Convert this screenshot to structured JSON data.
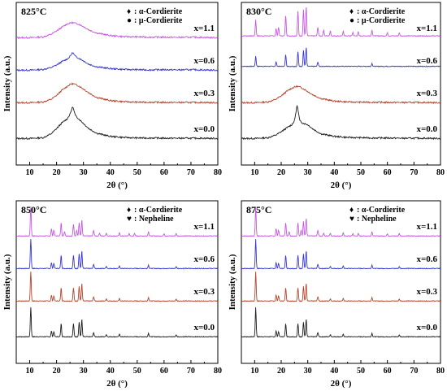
{
  "chart_data": [
    {
      "type": "line",
      "title": "825°C",
      "xlabel": "2θ (°)",
      "ylabel": "Intensity (a.u.)",
      "xlim": [
        5,
        80
      ],
      "xticks": [
        10,
        20,
        30,
        40,
        50,
        60,
        70,
        80
      ],
      "legend": [
        {
          "symbol": "♦",
          "label": ": α-Cordierite"
        },
        {
          "symbol": "●",
          "label": ": μ-Cordierite"
        }
      ],
      "legend_position": "top-right",
      "series": [
        {
          "name": "x=1.1",
          "color": "#c24fe0",
          "kind": "amorphous",
          "x": [
            5,
            10,
            15,
            18,
            20,
            22,
            24,
            25,
            26,
            27,
            28,
            30,
            32,
            35,
            40,
            45,
            50,
            55,
            60,
            65,
            70,
            75,
            80
          ],
          "y": [
            0.02,
            0.02,
            0.05,
            0.15,
            0.28,
            0.42,
            0.55,
            0.58,
            0.6,
            0.57,
            0.55,
            0.45,
            0.32,
            0.2,
            0.1,
            0.06,
            0.05,
            0.04,
            0.04,
            0.03,
            0.04,
            0.03,
            0.02
          ]
        },
        {
          "name": "x=0.6",
          "color": "#2b2bd1",
          "kind": "amorphous",
          "x": [
            5,
            10,
            15,
            18,
            20,
            22,
            24,
            25,
            26,
            27,
            28,
            30,
            32,
            35,
            40,
            45,
            50,
            55,
            60,
            65,
            70,
            75,
            80
          ],
          "y": [
            0.02,
            0.02,
            0.05,
            0.12,
            0.22,
            0.35,
            0.45,
            0.55,
            0.7,
            0.55,
            0.5,
            0.38,
            0.25,
            0.15,
            0.08,
            0.05,
            0.04,
            0.03,
            0.04,
            0.03,
            0.04,
            0.03,
            0.02
          ]
        },
        {
          "name": "x=0.3",
          "color": "#b03a22",
          "kind": "amorphous",
          "x": [
            5,
            10,
            15,
            18,
            20,
            22,
            24,
            25,
            26,
            27,
            28,
            30,
            32,
            35,
            40,
            45,
            50,
            55,
            60,
            65,
            70,
            75,
            80
          ],
          "y": [
            0.02,
            0.02,
            0.05,
            0.15,
            0.3,
            0.5,
            0.65,
            0.72,
            0.75,
            0.72,
            0.68,
            0.55,
            0.4,
            0.22,
            0.1,
            0.06,
            0.04,
            0.04,
            0.03,
            0.03,
            0.03,
            0.03,
            0.02
          ]
        },
        {
          "name": "x=0.0",
          "color": "#111111",
          "kind": "amorphous",
          "x": [
            5,
            10,
            15,
            18,
            20,
            22,
            24,
            25,
            26,
            27,
            28,
            30,
            32,
            35,
            40,
            45,
            50,
            55,
            60,
            65,
            70,
            75,
            80
          ],
          "y": [
            0.02,
            0.02,
            0.05,
            0.2,
            0.4,
            0.62,
            0.78,
            0.95,
            1.25,
            0.9,
            0.8,
            0.6,
            0.4,
            0.22,
            0.1,
            0.06,
            0.04,
            0.04,
            0.03,
            0.03,
            0.03,
            0.03,
            0.02
          ]
        }
      ]
    },
    {
      "type": "line",
      "title": "830°C",
      "xlabel": "2θ (°)",
      "ylabel": "Intensity (a.u.)",
      "xlim": [
        5,
        80
      ],
      "xticks": [
        10,
        20,
        30,
        40,
        50,
        60,
        70,
        80
      ],
      "legend": [
        {
          "symbol": "♦",
          "label": ": α-Cordierite"
        },
        {
          "symbol": "●",
          "label": ": μ-Cordierite"
        }
      ],
      "legend_position": "top-right",
      "series": [
        {
          "name": "x=1.1",
          "color": "#c24fe0",
          "kind": "crystalline",
          "peaks": [
            [
              10.4,
              0.55
            ],
            [
              18.1,
              0.25
            ],
            [
              19.0,
              0.3
            ],
            [
              21.7,
              0.7
            ],
            [
              26.3,
              0.85
            ],
            [
              28.4,
              0.9
            ],
            [
              29.4,
              1.0
            ],
            [
              33.8,
              0.3
            ],
            [
              36.0,
              0.2
            ],
            [
              38.5,
              0.18
            ],
            [
              43.4,
              0.15
            ],
            [
              47.0,
              0.12
            ],
            [
              49.0,
              0.13
            ],
            [
              54.2,
              0.2
            ],
            [
              60.0,
              0.12
            ],
            [
              64.5,
              0.1
            ]
          ],
          "baseline": 0.08
        },
        {
          "name": "x=0.6",
          "color": "#2b2bd1",
          "kind": "crystalline",
          "peaks": [
            [
              10.4,
              0.35
            ],
            [
              18.1,
              0.15
            ],
            [
              21.7,
              0.4
            ],
            [
              26.3,
              0.5
            ],
            [
              28.4,
              0.55
            ],
            [
              29.4,
              0.65
            ],
            [
              33.8,
              0.15
            ],
            [
              54.2,
              0.1
            ]
          ],
          "baseline": 0.15
        },
        {
          "name": "x=0.3",
          "color": "#b03a22",
          "kind": "amorphous",
          "x": [
            5,
            10,
            15,
            18,
            20,
            22,
            24,
            25,
            26,
            27,
            28,
            30,
            32,
            35,
            40,
            45,
            50,
            55,
            60,
            65,
            70,
            75,
            80
          ],
          "y": [
            0.02,
            0.02,
            0.05,
            0.15,
            0.28,
            0.45,
            0.58,
            0.62,
            0.65,
            0.62,
            0.58,
            0.45,
            0.32,
            0.18,
            0.08,
            0.05,
            0.04,
            0.04,
            0.03,
            0.03,
            0.03,
            0.03,
            0.02
          ]
        },
        {
          "name": "x=0.0",
          "color": "#111111",
          "kind": "mixed",
          "x": [
            5,
            10,
            15,
            18,
            20,
            22,
            24,
            25,
            26,
            27,
            28,
            30,
            32,
            35,
            40,
            45,
            50,
            55,
            60,
            65,
            70,
            75,
            80
          ],
          "y": [
            0.02,
            0.02,
            0.05,
            0.15,
            0.28,
            0.42,
            0.55,
            0.7,
            1.3,
            0.7,
            0.62,
            0.55,
            0.38,
            0.2,
            0.1,
            0.06,
            0.05,
            0.04,
            0.04,
            0.03,
            0.03,
            0.03,
            0.02
          ]
        }
      ]
    },
    {
      "type": "line",
      "title": "850°C",
      "xlabel": "2θ (°)",
      "ylabel": "Intensity (a.u.)",
      "xlim": [
        5,
        80
      ],
      "xticks": [
        10,
        20,
        30,
        40,
        50,
        60,
        70,
        80
      ],
      "legend": [
        {
          "symbol": "♦",
          "label": ": α-Cordierite"
        },
        {
          "symbol": "♥",
          "label": ": Nepheline"
        }
      ],
      "legend_position": "top-right",
      "series": [
        {
          "name": "x=1.1",
          "color": "#c24fe0",
          "kind": "crystalline",
          "peaks": [
            [
              10.4,
              1.0
            ],
            [
              18.1,
              0.25
            ],
            [
              19.0,
              0.2
            ],
            [
              21.7,
              0.45
            ],
            [
              23.0,
              0.15
            ],
            [
              26.3,
              0.4
            ],
            [
              27.5,
              0.2
            ],
            [
              28.4,
              0.45
            ],
            [
              29.4,
              0.55
            ],
            [
              33.8,
              0.2
            ],
            [
              36.0,
              0.1
            ],
            [
              38.5,
              0.1
            ],
            [
              43.4,
              0.1
            ],
            [
              47.0,
              0.08
            ],
            [
              49.0,
              0.08
            ],
            [
              54.2,
              0.15
            ],
            [
              60.0,
              0.08
            ],
            [
              64.5,
              0.08
            ]
          ],
          "baseline": 0.02
        },
        {
          "name": "x=0.6",
          "color": "#2b2bd1",
          "kind": "crystalline",
          "peaks": [
            [
              10.4,
              1.0
            ],
            [
              18.1,
              0.2
            ],
            [
              19.0,
              0.18
            ],
            [
              21.7,
              0.45
            ],
            [
              26.3,
              0.45
            ],
            [
              28.4,
              0.5
            ],
            [
              29.4,
              0.6
            ],
            [
              33.8,
              0.15
            ],
            [
              38.5,
              0.08
            ],
            [
              43.4,
              0.08
            ],
            [
              54.2,
              0.12
            ],
            [
              64.5,
              0.06
            ]
          ],
          "baseline": 0.02
        },
        {
          "name": "x=0.3",
          "color": "#b03a22",
          "kind": "crystalline",
          "peaks": [
            [
              10.4,
              1.0
            ],
            [
              18.1,
              0.2
            ],
            [
              19.0,
              0.18
            ],
            [
              21.7,
              0.45
            ],
            [
              26.3,
              0.45
            ],
            [
              28.4,
              0.5
            ],
            [
              29.4,
              0.6
            ],
            [
              33.8,
              0.15
            ],
            [
              38.5,
              0.08
            ],
            [
              43.4,
              0.08
            ],
            [
              54.2,
              0.12
            ],
            [
              64.5,
              0.06
            ]
          ],
          "baseline": 0.02
        },
        {
          "name": "x=0.0",
          "color": "#111111",
          "kind": "crystalline",
          "peaks": [
            [
              10.4,
              1.0
            ],
            [
              18.1,
              0.2
            ],
            [
              19.0,
              0.18
            ],
            [
              21.7,
              0.45
            ],
            [
              26.3,
              0.45
            ],
            [
              28.4,
              0.5
            ],
            [
              29.4,
              0.6
            ],
            [
              33.8,
              0.15
            ],
            [
              38.5,
              0.08
            ],
            [
              43.4,
              0.08
            ],
            [
              54.2,
              0.12
            ],
            [
              64.5,
              0.06
            ]
          ],
          "baseline": 0.02
        }
      ]
    },
    {
      "type": "line",
      "title": "875°C",
      "xlabel": "2θ (°)",
      "ylabel": "Intensity (a.u.)",
      "xlim": [
        5,
        80
      ],
      "xticks": [
        10,
        20,
        30,
        40,
        50,
        60,
        70,
        80
      ],
      "legend": [
        {
          "symbol": "♦",
          "label": ": α-Cordierite"
        },
        {
          "symbol": "♥",
          "label": ": Nepheline"
        }
      ],
      "legend_position": "top-right",
      "series": [
        {
          "name": "x=1.1",
          "color": "#c24fe0",
          "kind": "crystalline",
          "peaks": [
            [
              10.4,
              1.0
            ],
            [
              18.1,
              0.25
            ],
            [
              19.0,
              0.2
            ],
            [
              21.7,
              0.45
            ],
            [
              23.0,
              0.15
            ],
            [
              26.3,
              0.45
            ],
            [
              27.5,
              0.2
            ],
            [
              28.4,
              0.5
            ],
            [
              29.4,
              0.6
            ],
            [
              33.8,
              0.2
            ],
            [
              36.0,
              0.1
            ],
            [
              38.5,
              0.1
            ],
            [
              43.4,
              0.1
            ],
            [
              47.0,
              0.08
            ],
            [
              49.0,
              0.08
            ],
            [
              54.2,
              0.15
            ],
            [
              60.0,
              0.08
            ],
            [
              64.5,
              0.08
            ]
          ],
          "baseline": 0.02
        },
        {
          "name": "x=0.6",
          "color": "#2b2bd1",
          "kind": "crystalline",
          "peaks": [
            [
              10.4,
              1.0
            ],
            [
              18.1,
              0.2
            ],
            [
              19.0,
              0.18
            ],
            [
              21.7,
              0.45
            ],
            [
              26.3,
              0.45
            ],
            [
              28.4,
              0.5
            ],
            [
              29.4,
              0.6
            ],
            [
              33.8,
              0.15
            ],
            [
              38.5,
              0.08
            ],
            [
              43.4,
              0.08
            ],
            [
              54.2,
              0.12
            ],
            [
              64.5,
              0.06
            ]
          ],
          "baseline": 0.02
        },
        {
          "name": "x=0.3",
          "color": "#b03a22",
          "kind": "crystalline",
          "peaks": [
            [
              10.4,
              1.0
            ],
            [
              18.1,
              0.2
            ],
            [
              19.0,
              0.18
            ],
            [
              21.7,
              0.45
            ],
            [
              26.3,
              0.45
            ],
            [
              28.4,
              0.5
            ],
            [
              29.4,
              0.6
            ],
            [
              33.8,
              0.15
            ],
            [
              38.5,
              0.08
            ],
            [
              43.4,
              0.08
            ],
            [
              54.2,
              0.12
            ],
            [
              64.5,
              0.06
            ]
          ],
          "baseline": 0.02
        },
        {
          "name": "x=0.0",
          "color": "#111111",
          "kind": "crystalline",
          "peaks": [
            [
              10.4,
              1.0
            ],
            [
              18.1,
              0.2
            ],
            [
              19.0,
              0.18
            ],
            [
              21.7,
              0.45
            ],
            [
              26.3,
              0.45
            ],
            [
              28.4,
              0.5
            ],
            [
              29.4,
              0.6
            ],
            [
              33.8,
              0.15
            ],
            [
              38.5,
              0.08
            ],
            [
              43.4,
              0.08
            ],
            [
              54.2,
              0.12
            ],
            [
              64.5,
              0.06
            ]
          ],
          "baseline": 0.02
        }
      ]
    }
  ]
}
